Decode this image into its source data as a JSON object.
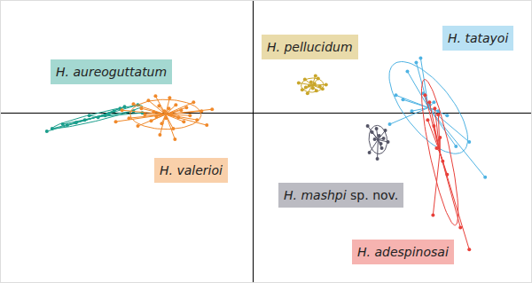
{
  "chart_data": {
    "type": "scatter",
    "xlim": [
      -28.5,
      31.5
    ],
    "ylim": [
      -19.2,
      12.7
    ],
    "grid": false,
    "tick_labels": false,
    "series": [
      {
        "name": "H. aureoguttatum",
        "color": "#1b9e8c",
        "x": [
          -23.3,
          -22.7,
          -21.5,
          -20,
          -19,
          -17.5,
          -16.7,
          -16.3,
          -15.7,
          -15,
          -14.5,
          -13.5,
          -13,
          -12.5,
          -21,
          -18.5
        ],
        "y": [
          -2.1,
          -1.8,
          -1.3,
          -1.1,
          -0.8,
          -0.5,
          -0.3,
          -0.1,
          0.2,
          0.5,
          0.7,
          0.2,
          0.9,
          0,
          -1.4,
          -0.3
        ]
      },
      {
        "name": "H. valerioi",
        "color": "#f0892a",
        "x": [
          -15.5,
          -14.8,
          -14,
          -13.5,
          -13,
          -12.6,
          -12.2,
          -11.8,
          -11.5,
          -11.2,
          -10.9,
          -10.6,
          -10.3,
          -10,
          -9.8,
          -9.5,
          -9.2,
          -9,
          -8.7,
          -8.4,
          -8.1,
          -7.8,
          -7.5,
          -7.1,
          -6.7,
          -6.3,
          -5.8,
          -5.2,
          -4.6,
          -8.8,
          -10.5,
          -11,
          -9.4
        ],
        "y": [
          -1.0,
          0.3,
          -0.6,
          1.0,
          -1.5,
          0.5,
          -0.2,
          1.4,
          -0.9,
          0.1,
          -0.4,
          0.8,
          -1.2,
          0.2,
          -0.6,
          0.5,
          -0.1,
          -1.8,
          0.9,
          -0.5,
          0.3,
          -1.0,
          0.6,
          -0.3,
          1.2,
          -0.8,
          0.2,
          -1.4,
          0.4,
          -3.0,
          -2.5,
          1.9,
          1.7
        ]
      },
      {
        "name": "H. pellucidum",
        "color": "#c9a62a",
        "x": [
          5.2,
          5.6,
          5.9,
          6.2,
          6.4,
          6.6,
          6.8,
          7.0,
          7.2,
          7.4,
          7.6,
          7.9,
          8.3,
          6.0,
          7.1
        ],
        "y": [
          3.4,
          2.6,
          3.8,
          2.2,
          3.1,
          3.5,
          2.8,
          3.3,
          2.5,
          3.9,
          3.0,
          2.7,
          3.2,
          2.9,
          4.2
        ]
      },
      {
        "name": "H. tatayoi",
        "color": "#4fb3e3",
        "x": [
          16.2,
          17,
          17.5,
          18.5,
          19.3,
          20,
          20.5,
          21,
          22,
          23,
          24.5,
          26.3,
          19,
          15.5,
          18
        ],
        "y": [
          2.0,
          1.5,
          4.7,
          5.7,
          2.2,
          0.9,
          1.2,
          0.2,
          -0.3,
          -3.8,
          -3.3,
          -7.3,
          6.2,
          -1.3,
          0.2
        ]
      },
      {
        "name": "H. mashpi sp. nov.",
        "color": "#555566",
        "x": [
          13,
          13.5,
          13.8,
          14,
          14.3,
          14.5,
          14.8,
          15,
          13.2,
          14.1,
          15.3,
          14.6
        ],
        "y": [
          -1.5,
          -2.2,
          -3.0,
          -1.8,
          -2.6,
          -3.5,
          -2.9,
          -2.0,
          -4.5,
          -5.2,
          -3.3,
          -4.0
        ]
      },
      {
        "name": "H. adespinosai",
        "color": "#e8403a",
        "x": [
          19.5,
          20,
          20.6,
          21,
          20.5,
          21.2,
          20.8,
          21.5,
          20.4,
          23.5,
          24.5,
          22,
          19.8
        ],
        "y": [
          2.0,
          1.2,
          0.5,
          -0.2,
          -1.5,
          -2.8,
          -4.0,
          -5.5,
          -11.6,
          -13,
          -15.5,
          -7,
          -0.8
        ]
      }
    ]
  }
}
